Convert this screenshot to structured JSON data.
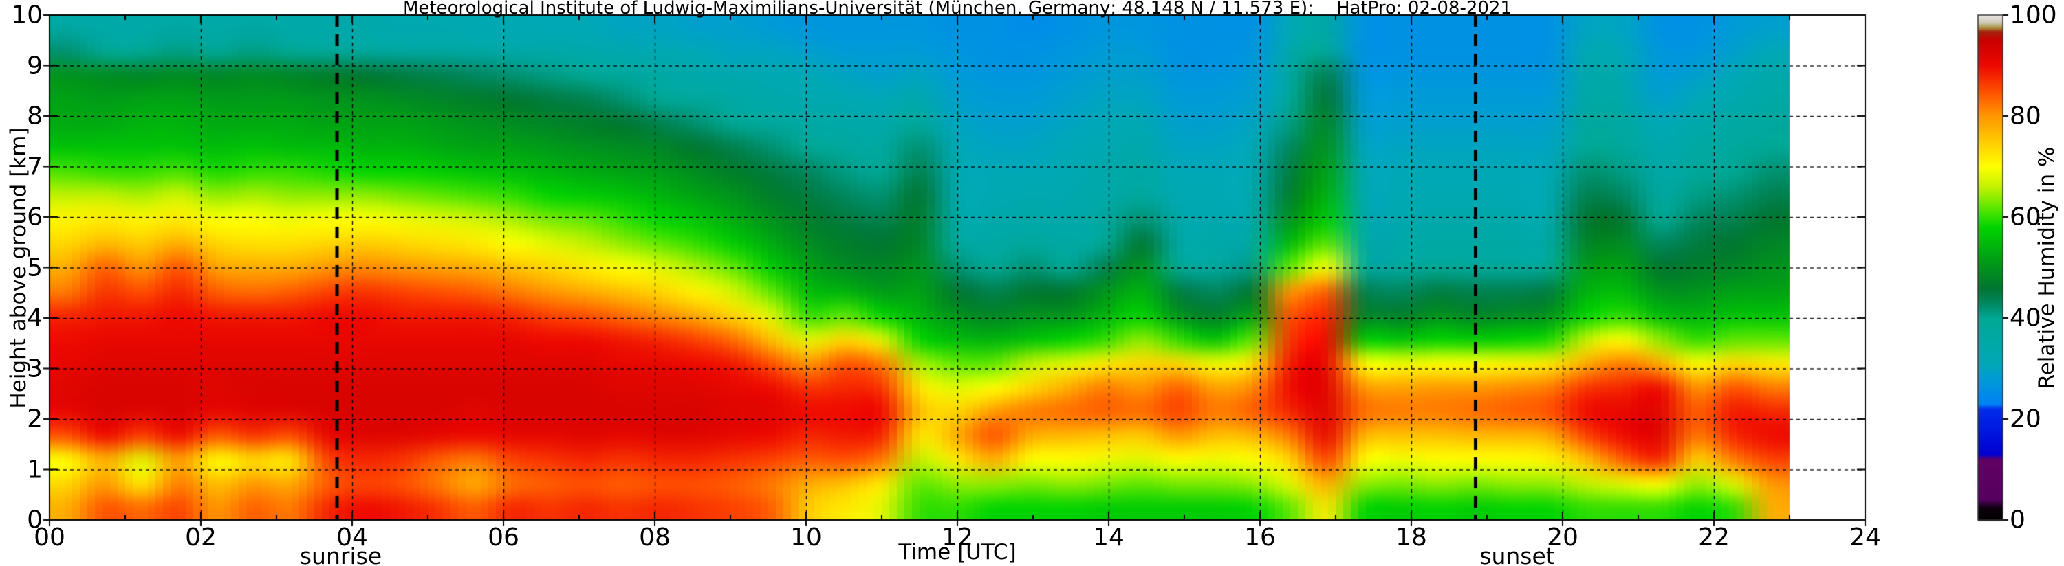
{
  "chart_data": {
    "type": "heatmap",
    "title": "Meteorological Institute of Ludwig-Maximilians-Universität (München, Germany; 48.148 N / 11.573 E):    HatPro: 02-08-2021",
    "xlabel": "Time [UTC]",
    "ylabel": "Height above ground [km]",
    "colorbar_label": "Relative Humidity in %",
    "xlim": [
      0,
      24
    ],
    "ylim": [
      0,
      10
    ],
    "clim": [
      0,
      100
    ],
    "grid": "dashed black, x every 2 h, y every 1 km",
    "x_tick_labels": [
      "00",
      "02",
      "04",
      "06",
      "08",
      "10",
      "12",
      "14",
      "16",
      "18",
      "20",
      "22",
      "24"
    ],
    "x_tick_values": [
      0,
      2,
      4,
      6,
      8,
      10,
      12,
      14,
      16,
      18,
      20,
      22,
      24
    ],
    "y_tick_labels": [
      "0",
      "1",
      "2",
      "3",
      "4",
      "5",
      "6",
      "7",
      "8",
      "9",
      "10"
    ],
    "y_tick_values": [
      0,
      1,
      2,
      3,
      4,
      5,
      6,
      7,
      8,
      9,
      10
    ],
    "colorbar_tick_labels": [
      "0",
      "20",
      "40",
      "60",
      "80",
      "100"
    ],
    "colorbar_tick_values": [
      0,
      20,
      40,
      60,
      80,
      100
    ],
    "annotations": [
      {
        "label": "sunrise",
        "time": 3.8,
        "label_time": 3.85
      },
      {
        "label": "sunset",
        "time": 18.85,
        "label_time": 19.4
      }
    ],
    "data_time_range_h": [
      0,
      23
    ],
    "x_hours": [
      0,
      0.5,
      1,
      1.5,
      2,
      2.5,
      3,
      3.5,
      4,
      4.5,
      5,
      5.5,
      6,
      6.5,
      7,
      7.5,
      8,
      8.5,
      9,
      9.5,
      10,
      10.5,
      11,
      11.5,
      12,
      12.5,
      13,
      13.5,
      14,
      14.5,
      15,
      15.5,
      16,
      16.5,
      17,
      17.5,
      18,
      18.5,
      19,
      19.5,
      20,
      20.5,
      21,
      21.5,
      22,
      22.5,
      23
    ],
    "heights_km": [
      0,
      0.5,
      1,
      1.5,
      2,
      2.5,
      3,
      3.5,
      4,
      4.5,
      5,
      5.5,
      6,
      6.5,
      7,
      7.5,
      8,
      8.5,
      9,
      9.5,
      10
    ],
    "rh_percent": [
      [
        78,
        74,
        70,
        85,
        91,
        92,
        91,
        90,
        88,
        82,
        78,
        74,
        71,
        66,
        61,
        56,
        53,
        52,
        50,
        42,
        36
      ],
      [
        85,
        80,
        78,
        90,
        93,
        93,
        92,
        91,
        89,
        87,
        84,
        77,
        72,
        66,
        60,
        56,
        53,
        51,
        49,
        40,
        35
      ],
      [
        83,
        72,
        68,
        86,
        92,
        93,
        92,
        91,
        89,
        85,
        80,
        75,
        71,
        65,
        60,
        56,
        54,
        52,
        48,
        40,
        35
      ],
      [
        86,
        82,
        80,
        90,
        93,
        93,
        92,
        91,
        90,
        88,
        85,
        78,
        72,
        67,
        61,
        56,
        54,
        52,
        49,
        41,
        36
      ],
      [
        80,
        76,
        70,
        84,
        91,
        92,
        92,
        91,
        89,
        84,
        79,
        74,
        70,
        64,
        59,
        55,
        53,
        51,
        48,
        40,
        35
      ],
      [
        84,
        80,
        74,
        87,
        92,
        93,
        92,
        91,
        89,
        83,
        78,
        73,
        70,
        65,
        60,
        56,
        53,
        51,
        49,
        41,
        36
      ],
      [
        82,
        78,
        72,
        85,
        92,
        93,
        92,
        91,
        89,
        84,
        78,
        73,
        69,
        64,
        60,
        55,
        53,
        51,
        48,
        40,
        35
      ],
      [
        88,
        84,
        86,
        91,
        93,
        93,
        92,
        91,
        90,
        86,
        80,
        74,
        70,
        64,
        59,
        55,
        52,
        50,
        47,
        39,
        34
      ],
      [
        90,
        86,
        88,
        92,
        93,
        93,
        92,
        91,
        90,
        87,
        81,
        75,
        70,
        64,
        58,
        54,
        52,
        50,
        46,
        38,
        34
      ],
      [
        89,
        85,
        87,
        92,
        93,
        93,
        92,
        91,
        89,
        86,
        80,
        74,
        69,
        63,
        58,
        54,
        52,
        49,
        45,
        37,
        33
      ],
      [
        87,
        82,
        84,
        91,
        93,
        93,
        92,
        91,
        89,
        85,
        79,
        73,
        68,
        62,
        57,
        53,
        51,
        48,
        44,
        37,
        33
      ],
      [
        84,
        78,
        82,
        90,
        92,
        93,
        92,
        91,
        89,
        84,
        78,
        72,
        67,
        61,
        56,
        52,
        50,
        47,
        43,
        36,
        32
      ],
      [
        88,
        83,
        86,
        91,
        93,
        93,
        92,
        91,
        88,
        82,
        76,
        70,
        65,
        60,
        55,
        52,
        49,
        46,
        42,
        35,
        32
      ],
      [
        87,
        84,
        87,
        91,
        93,
        93,
        92,
        90,
        86,
        80,
        74,
        68,
        63,
        58,
        54,
        51,
        48,
        45,
        41,
        35,
        31
      ],
      [
        88,
        85,
        88,
        92,
        93,
        93,
        92,
        90,
        85,
        78,
        72,
        66,
        62,
        57,
        53,
        50,
        47,
        44,
        40,
        34,
        31
      ],
      [
        87,
        84,
        87,
        91,
        93,
        92,
        91,
        89,
        83,
        76,
        70,
        64,
        60,
        56,
        52,
        49,
        46,
        42,
        38,
        33,
        30
      ],
      [
        88,
        85,
        88,
        92,
        93,
        92,
        91,
        88,
        81,
        74,
        68,
        62,
        58,
        54,
        51,
        48,
        44,
        40,
        36,
        32,
        30
      ],
      [
        87,
        85,
        88,
        92,
        93,
        92,
        90,
        86,
        78,
        71,
        65,
        60,
        56,
        52,
        49,
        46,
        42,
        38,
        34,
        31,
        29
      ],
      [
        86,
        84,
        87,
        91,
        92,
        91,
        89,
        83,
        74,
        67,
        62,
        57,
        53,
        50,
        47,
        44,
        40,
        36,
        33,
        30,
        29
      ],
      [
        84,
        82,
        86,
        90,
        92,
        90,
        85,
        76,
        68,
        62,
        57,
        53,
        50,
        47,
        45,
        42,
        38,
        34,
        32,
        30,
        28
      ],
      [
        75,
        78,
        84,
        88,
        90,
        87,
        80,
        68,
        60,
        55,
        52,
        49,
        47,
        45,
        43,
        40,
        36,
        33,
        31,
        29,
        27
      ],
      [
        72,
        76,
        85,
        89,
        90,
        88,
        85,
        74,
        62,
        54,
        49,
        47,
        45,
        43,
        41,
        38,
        35,
        32,
        30,
        28,
        27
      ],
      [
        68,
        72,
        82,
        88,
        90,
        87,
        82,
        68,
        58,
        51,
        48,
        46,
        44,
        42,
        40,
        37,
        34,
        31,
        29,
        28,
        27
      ],
      [
        60,
        62,
        66,
        72,
        76,
        72,
        65,
        58,
        54,
        52,
        50,
        48,
        47,
        46,
        44,
        42,
        39,
        34,
        30,
        28,
        27
      ],
      [
        60,
        64,
        72,
        78,
        74,
        68,
        62,
        55,
        50,
        46,
        42,
        38,
        35,
        33,
        32,
        31,
        30,
        29,
        28,
        27,
        26
      ],
      [
        58,
        64,
        78,
        85,
        80,
        70,
        62,
        54,
        48,
        44,
        40,
        36,
        34,
        32,
        31,
        30,
        29,
        28,
        27,
        26,
        26
      ],
      [
        58,
        63,
        70,
        78,
        82,
        74,
        66,
        56,
        50,
        46,
        42,
        38,
        35,
        33,
        31,
        30,
        29,
        28,
        27,
        26,
        25
      ],
      [
        58,
        64,
        70,
        77,
        83,
        78,
        68,
        58,
        50,
        46,
        40,
        36,
        34,
        33,
        32,
        31,
        30,
        29,
        28,
        27,
        26
      ],
      [
        57,
        63,
        69,
        76,
        84,
        82,
        72,
        60,
        54,
        50,
        44,
        40,
        37,
        35,
        34,
        32,
        31,
        30,
        29,
        28,
        27
      ],
      [
        57,
        62,
        68,
        75,
        83,
        80,
        74,
        64,
        58,
        54,
        50,
        46,
        42,
        38,
        36,
        34,
        32,
        30,
        29,
        28,
        27
      ],
      [
        57,
        63,
        70,
        80,
        86,
        84,
        74,
        60,
        50,
        45,
        40,
        36,
        34,
        32,
        31,
        30,
        29,
        28,
        27,
        26,
        26
      ],
      [
        57,
        63,
        69,
        76,
        82,
        79,
        69,
        56,
        47,
        43,
        38,
        35,
        33,
        32,
        31,
        30,
        29,
        28,
        27,
        26,
        26
      ],
      [
        58,
        64,
        70,
        77,
        84,
        81,
        73,
        62,
        52,
        46,
        41,
        37,
        35,
        33,
        32,
        31,
        30,
        29,
        28,
        27,
        26
      ],
      [
        62,
        68,
        74,
        82,
        88,
        90,
        89,
        87,
        85,
        80,
        62,
        55,
        50,
        47,
        45,
        43,
        41,
        39,
        37,
        34,
        31
      ],
      [
        72,
        78,
        86,
        91,
        92,
        92,
        91,
        90,
        88,
        84,
        70,
        62,
        57,
        54,
        52,
        50,
        48,
        46,
        44,
        40,
        36
      ],
      [
        58,
        64,
        70,
        77,
        83,
        80,
        70,
        57,
        48,
        44,
        39,
        36,
        34,
        32,
        31,
        30,
        29,
        28,
        27,
        26,
        26
      ],
      [
        57,
        63,
        69,
        76,
        82,
        79,
        69,
        56,
        47,
        43,
        38,
        35,
        33,
        32,
        31,
        30,
        29,
        28,
        27,
        26,
        26
      ],
      [
        58,
        64,
        70,
        76,
        82,
        80,
        70,
        58,
        50,
        45,
        40,
        36,
        34,
        32,
        31,
        30,
        29,
        28,
        27,
        26,
        26
      ],
      [
        57,
        63,
        70,
        77,
        83,
        80,
        70,
        57,
        48,
        44,
        39,
        36,
        34,
        32,
        31,
        30,
        29,
        28,
        27,
        26,
        26
      ],
      [
        58,
        64,
        70,
        77,
        84,
        81,
        71,
        58,
        49,
        44,
        39,
        36,
        34,
        32,
        31,
        30,
        29,
        28,
        27,
        26,
        26
      ],
      [
        58,
        64,
        71,
        78,
        85,
        82,
        72,
        59,
        50,
        45,
        40,
        36,
        34,
        32,
        31,
        30,
        29,
        28,
        27,
        26,
        26
      ],
      [
        60,
        66,
        76,
        86,
        90,
        87,
        78,
        66,
        58,
        54,
        51,
        48,
        46,
        44,
        42,
        40,
        38,
        36,
        34,
        32,
        30
      ],
      [
        60,
        68,
        84,
        90,
        91,
        88,
        82,
        70,
        60,
        55,
        52,
        49,
        46,
        43,
        41,
        39,
        37,
        35,
        33,
        31,
        30
      ],
      [
        60,
        70,
        88,
        92,
        92,
        90,
        78,
        64,
        55,
        50,
        46,
        43,
        40,
        37,
        35,
        33,
        31,
        29,
        28,
        27,
        26
      ],
      [
        58,
        64,
        74,
        82,
        84,
        80,
        70,
        60,
        54,
        50,
        47,
        45,
        43,
        41,
        39,
        37,
        34,
        31,
        29,
        27,
        26
      ],
      [
        60,
        68,
        82,
        88,
        89,
        85,
        74,
        62,
        56,
        52,
        48,
        46,
        44,
        42,
        40,
        38,
        36,
        33,
        31,
        29,
        28
      ],
      [
        78,
        80,
        86,
        90,
        88,
        82,
        72,
        62,
        56,
        52,
        50,
        48,
        46,
        44,
        42,
        40,
        38,
        36,
        34,
        31,
        29
      ]
    ],
    "colormap_stops": [
      [
        0,
        0,
        0,
        0
      ],
      [
        2.5,
        15,
        0,
        15
      ],
      [
        4,
        85,
        0,
        95
      ],
      [
        12,
        98,
        0,
        100
      ],
      [
        13,
        0,
        0,
        210
      ],
      [
        22,
        0,
        45,
        235
      ],
      [
        23,
        0,
        130,
        245
      ],
      [
        28,
        0,
        155,
        215
      ],
      [
        31,
        0,
        168,
        182
      ],
      [
        40,
        0,
        168,
        150
      ],
      [
        43,
        0,
        135,
        95
      ],
      [
        46,
        0,
        118,
        48
      ],
      [
        52,
        0,
        162,
        20
      ],
      [
        58,
        0,
        212,
        0
      ],
      [
        62,
        95,
        232,
        0
      ],
      [
        66,
        195,
        242,
        0
      ],
      [
        70,
        255,
        255,
        0
      ],
      [
        75,
        255,
        205,
        0
      ],
      [
        80,
        255,
        152,
        0
      ],
      [
        85,
        255,
        80,
        0
      ],
      [
        90,
        238,
        10,
        0
      ],
      [
        95,
        202,
        0,
        0
      ],
      [
        96.8,
        165,
        35,
        15
      ],
      [
        97.6,
        172,
        152,
        70
      ],
      [
        98.6,
        208,
        202,
        185
      ],
      [
        100,
        232,
        230,
        226
      ]
    ],
    "line_colors": {
      "grid": "#000000",
      "annotation_lines": "#000000",
      "frame": "#000000"
    }
  }
}
